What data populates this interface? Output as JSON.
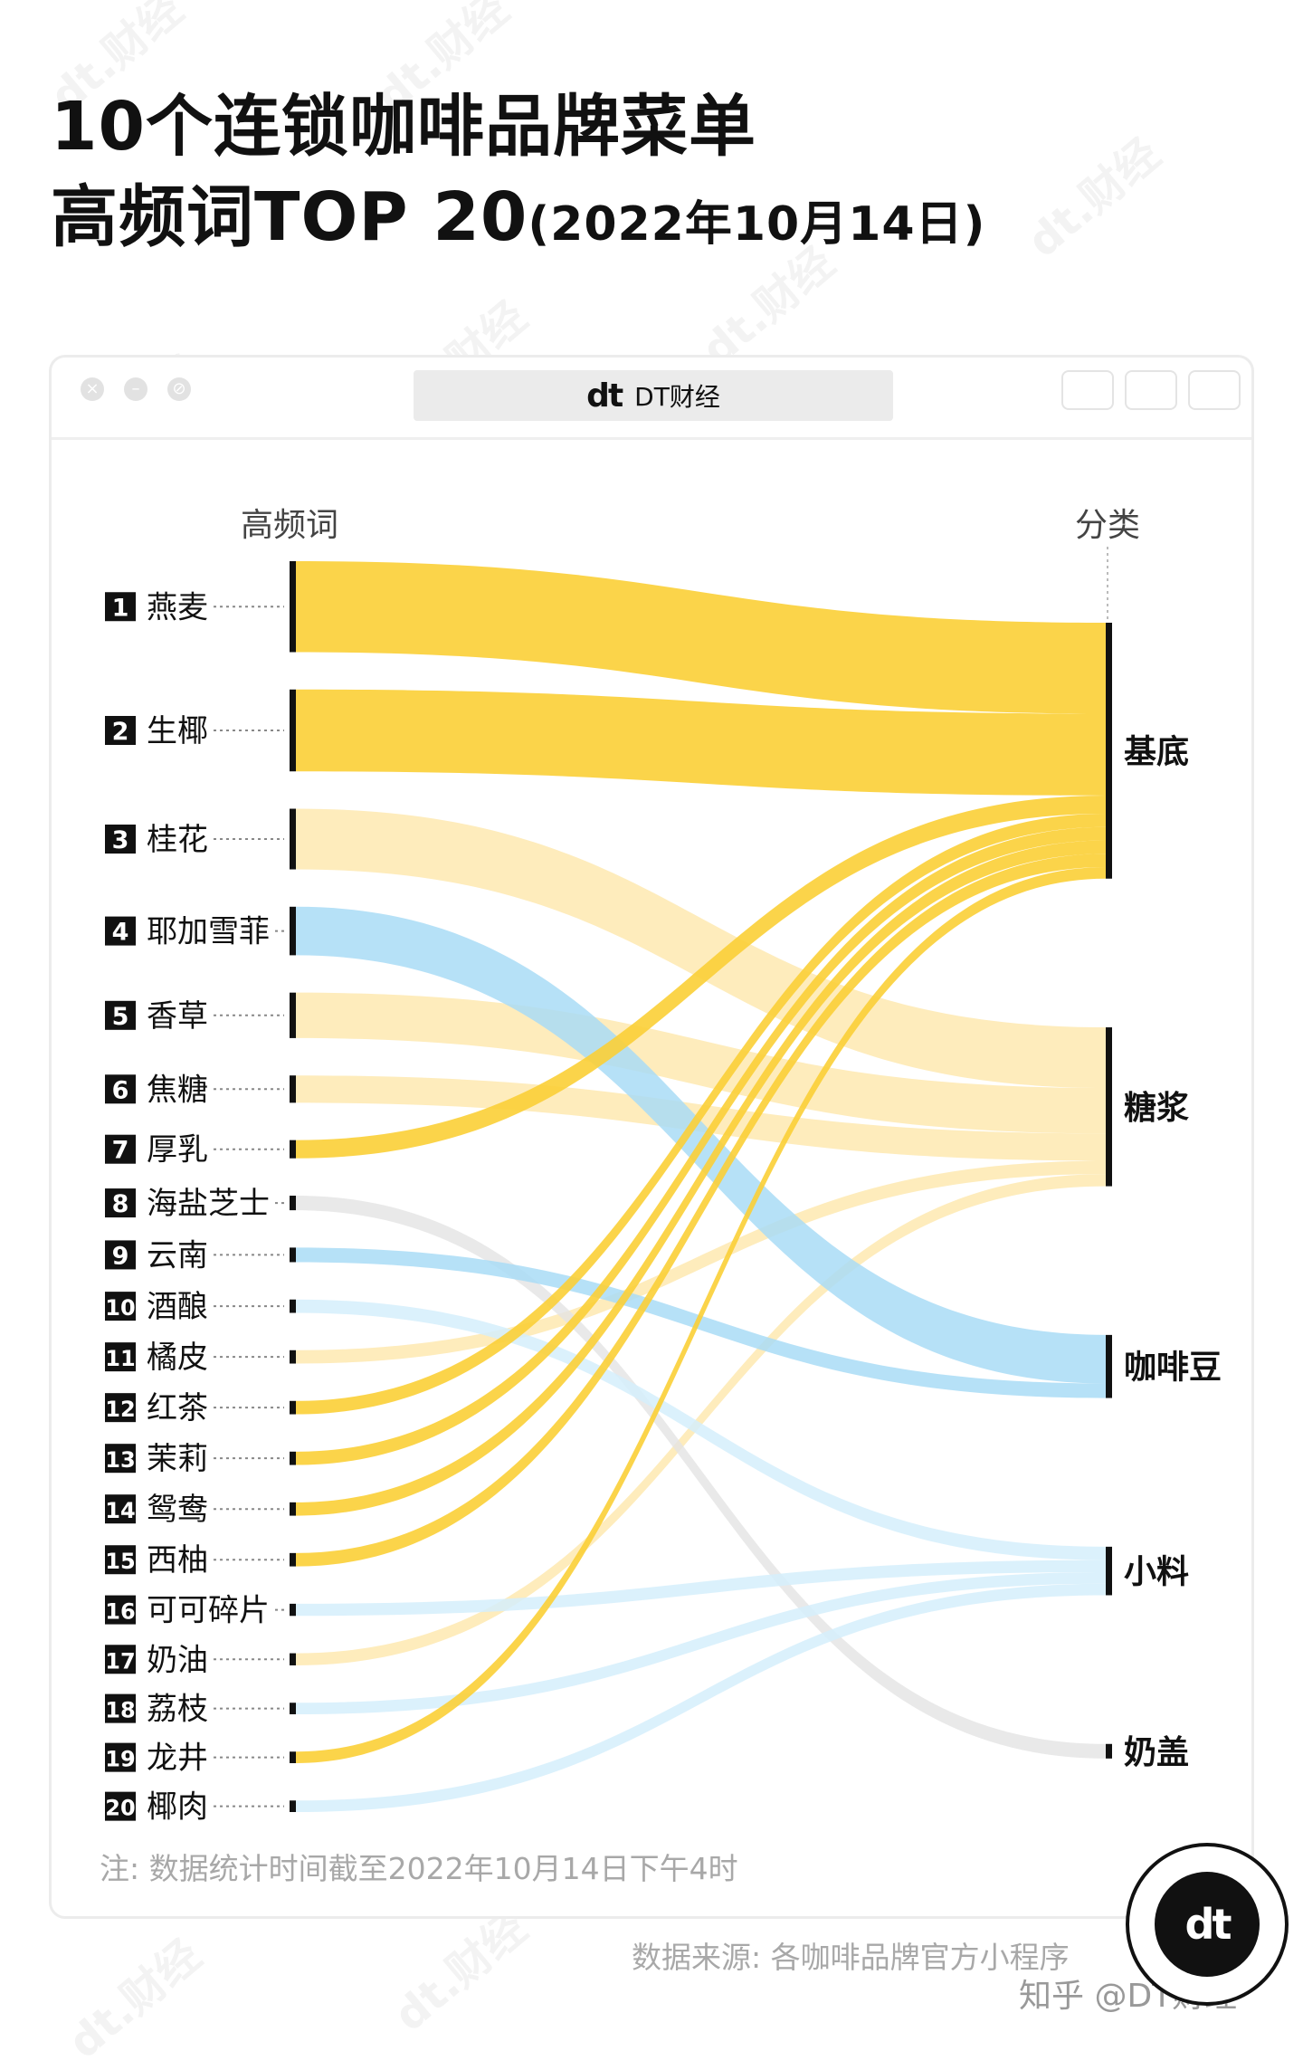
{
  "title_line1": "10个连锁咖啡品牌菜单",
  "title_line2_main": "高频词TOP 20",
  "title_line2_sub": "(2022年10月14日)",
  "window": {
    "brand_logo": "dt",
    "brand_name": "DT财经"
  },
  "footer": {
    "note": "注: 数据统计时间截至2022年10月14日下午4时",
    "source": "数据来源: 各咖啡品牌官方小程序",
    "zhihu": "知乎 @DT财经",
    "badge_logo": "dt"
  },
  "watermark_text": "dt.财经",
  "colors": {
    "yellow": "#fbcf36",
    "light_yellow": "#fde5a6",
    "blue": "#a9dcf6",
    "light_blue": "#d5eefb",
    "gray": "#e3e3e3",
    "bar": "#111111"
  },
  "chart_data": {
    "type": "sankey",
    "left_header": "高频词",
    "right_header": "分类",
    "words": [
      {
        "rank": "1",
        "name": "燕麦",
        "category": "基底",
        "weight": 15,
        "color": "#fbcf36",
        "opacity": 0.9
      },
      {
        "rank": "2",
        "name": "生椰",
        "category": "基底",
        "weight": 13.5,
        "color": "#fbcf36",
        "opacity": 0.9
      },
      {
        "rank": "3",
        "name": "桂花",
        "category": "糖浆",
        "weight": 10,
        "color": "#fde5a6",
        "opacity": 0.75
      },
      {
        "rank": "4",
        "name": "耶加雪菲",
        "category": "咖啡豆",
        "weight": 8,
        "color": "#a9dcf6",
        "opacity": 0.85
      },
      {
        "rank": "5",
        "name": "香草",
        "category": "糖浆",
        "weight": 7.5,
        "color": "#fde5a6",
        "opacity": 0.75
      },
      {
        "rank": "6",
        "name": "焦糖",
        "category": "糖浆",
        "weight": 4.5,
        "color": "#fde5a6",
        "opacity": 0.75
      },
      {
        "rank": "7",
        "name": "厚乳",
        "category": "基底",
        "weight": 3,
        "color": "#fbcf36",
        "opacity": 0.9
      },
      {
        "rank": "8",
        "name": "海盐芝士",
        "category": "奶盖",
        "weight": 2.4,
        "color": "#e3e3e3",
        "opacity": 0.8
      },
      {
        "rank": "9",
        "name": "云南",
        "category": "咖啡豆",
        "weight": 2.4,
        "color": "#a9dcf6",
        "opacity": 0.85
      },
      {
        "rank": "10",
        "name": "酒酿",
        "category": "小料",
        "weight": 2.2,
        "color": "#d5eefb",
        "opacity": 0.85
      },
      {
        "rank": "11",
        "name": "橘皮",
        "category": "糖浆",
        "weight": 2.2,
        "color": "#fde5a6",
        "opacity": 0.75
      },
      {
        "rank": "12",
        "name": "红茶",
        "category": "基底",
        "weight": 2.2,
        "color": "#fbcf36",
        "opacity": 0.9
      },
      {
        "rank": "13",
        "name": "茉莉",
        "category": "基底",
        "weight": 2.2,
        "color": "#fbcf36",
        "opacity": 0.9
      },
      {
        "rank": "14",
        "name": "鸳鸯",
        "category": "基底",
        "weight": 2.2,
        "color": "#fbcf36",
        "opacity": 0.9
      },
      {
        "rank": "15",
        "name": "西柚",
        "category": "基底",
        "weight": 2.2,
        "color": "#fbcf36",
        "opacity": 0.9
      },
      {
        "rank": "16",
        "name": "可可碎片",
        "category": "小料",
        "weight": 2,
        "color": "#d5eefb",
        "opacity": 0.85
      },
      {
        "rank": "17",
        "name": "奶油",
        "category": "糖浆",
        "weight": 2,
        "color": "#fde5a6",
        "opacity": 0.75
      },
      {
        "rank": "18",
        "name": "荔枝",
        "category": "小料",
        "weight": 1.9,
        "color": "#d5eefb",
        "opacity": 0.85
      },
      {
        "rank": "19",
        "name": "龙井",
        "category": "基底",
        "weight": 1.9,
        "color": "#fbcf36",
        "opacity": 0.9
      },
      {
        "rank": "20",
        "name": "椰肉",
        "category": "小料",
        "weight": 1.9,
        "color": "#d5eefb",
        "opacity": 0.85
      }
    ],
    "categories": [
      "基底",
      "糖浆",
      "咖啡豆",
      "小料",
      "奶盖"
    ]
  }
}
